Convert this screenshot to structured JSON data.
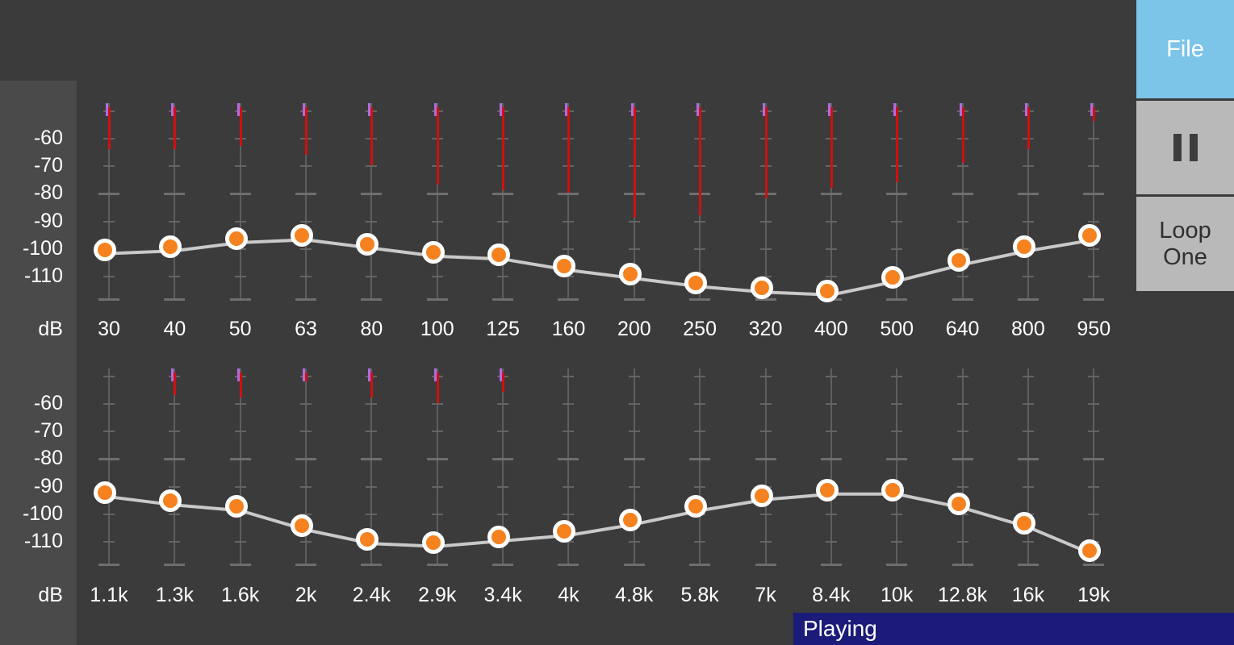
{
  "colors": {
    "background": "#3b3b3b",
    "axis_panel": "#4a4a4a",
    "label_text": "#ffffff",
    "knob": "#f5821f",
    "knob_ring": "#ffffff",
    "curve": "#c9c9c9",
    "track": "#5e5e5e",
    "tick": "#646464",
    "meter_red": "#cf1010",
    "meter_purple": "#b36adf",
    "file_button_bg": "#7cc4e8",
    "file_button_text": "#ffffff",
    "gray_button_bg": "#b9b9b9",
    "gray_button_text": "#303030",
    "status_bar_bg": "#1b1b7a",
    "status_bar_text": "#ffffff"
  },
  "sidebar": {
    "file_button_label": "File",
    "pause_icon": "pause-icon",
    "loop_button_label": "Loop One"
  },
  "status_bar": {
    "label": "Playing"
  },
  "equalizer": {
    "unit_label": "dB",
    "scale_ticks": [
      "-60",
      "-70",
      "-80",
      "-90",
      "-100",
      "-110"
    ],
    "scale_tick_values": [
      -60,
      -70,
      -80,
      -90,
      -100,
      -110
    ],
    "rows": [
      {
        "bands": [
          {
            "freq": "30",
            "gain_db": -102,
            "meter_db": -64
          },
          {
            "freq": "40",
            "gain_db": -101,
            "meter_db": -64
          },
          {
            "freq": "50",
            "gain_db": -98,
            "meter_db": -63
          },
          {
            "freq": "63",
            "gain_db": -97,
            "meter_db": -66
          },
          {
            "freq": "80",
            "gain_db": -100,
            "meter_db": -70
          },
          {
            "freq": "100",
            "gain_db": -103,
            "meter_db": -77
          },
          {
            "freq": "125",
            "gain_db": -104,
            "meter_db": -79
          },
          {
            "freq": "160",
            "gain_db": -108,
            "meter_db": -80
          },
          {
            "freq": "200",
            "gain_db": -111,
            "meter_db": -89
          },
          {
            "freq": "250",
            "gain_db": -114,
            "meter_db": -88
          },
          {
            "freq": "320",
            "gain_db": -116,
            "meter_db": -82
          },
          {
            "freq": "400",
            "gain_db": -117,
            "meter_db": -78
          },
          {
            "freq": "500",
            "gain_db": -112,
            "meter_db": -76
          },
          {
            "freq": "640",
            "gain_db": -106,
            "meter_db": -69
          },
          {
            "freq": "800",
            "gain_db": -101,
            "meter_db": -64
          },
          {
            "freq": "950",
            "gain_db": -97,
            "meter_db": -54
          }
        ]
      },
      {
        "bands": [
          {
            "freq": "1.1k",
            "gain_db": -94,
            "meter_db": null
          },
          {
            "freq": "1.3k",
            "gain_db": -97,
            "meter_db": -57
          },
          {
            "freq": "1.6k",
            "gain_db": -99,
            "meter_db": -58
          },
          {
            "freq": "2k",
            "gain_db": -106,
            "meter_db": -52
          },
          {
            "freq": "2.4k",
            "gain_db": -111,
            "meter_db": -58
          },
          {
            "freq": "2.9k",
            "gain_db": -112,
            "meter_db": -60
          },
          {
            "freq": "3.4k",
            "gain_db": -110,
            "meter_db": -56
          },
          {
            "freq": "4k",
            "gain_db": -108,
            "meter_db": null
          },
          {
            "freq": "4.8k",
            "gain_db": -104,
            "meter_db": null
          },
          {
            "freq": "5.8k",
            "gain_db": -99,
            "meter_db": null
          },
          {
            "freq": "7k",
            "gain_db": -95,
            "meter_db": null
          },
          {
            "freq": "8.4k",
            "gain_db": -93,
            "meter_db": null
          },
          {
            "freq": "10k",
            "gain_db": -93,
            "meter_db": null
          },
          {
            "freq": "12.8k",
            "gain_db": -98,
            "meter_db": null
          },
          {
            "freq": "16k",
            "gain_db": -105,
            "meter_db": null
          },
          {
            "freq": "19k",
            "gain_db": -115,
            "meter_db": null
          }
        ]
      }
    ]
  }
}
